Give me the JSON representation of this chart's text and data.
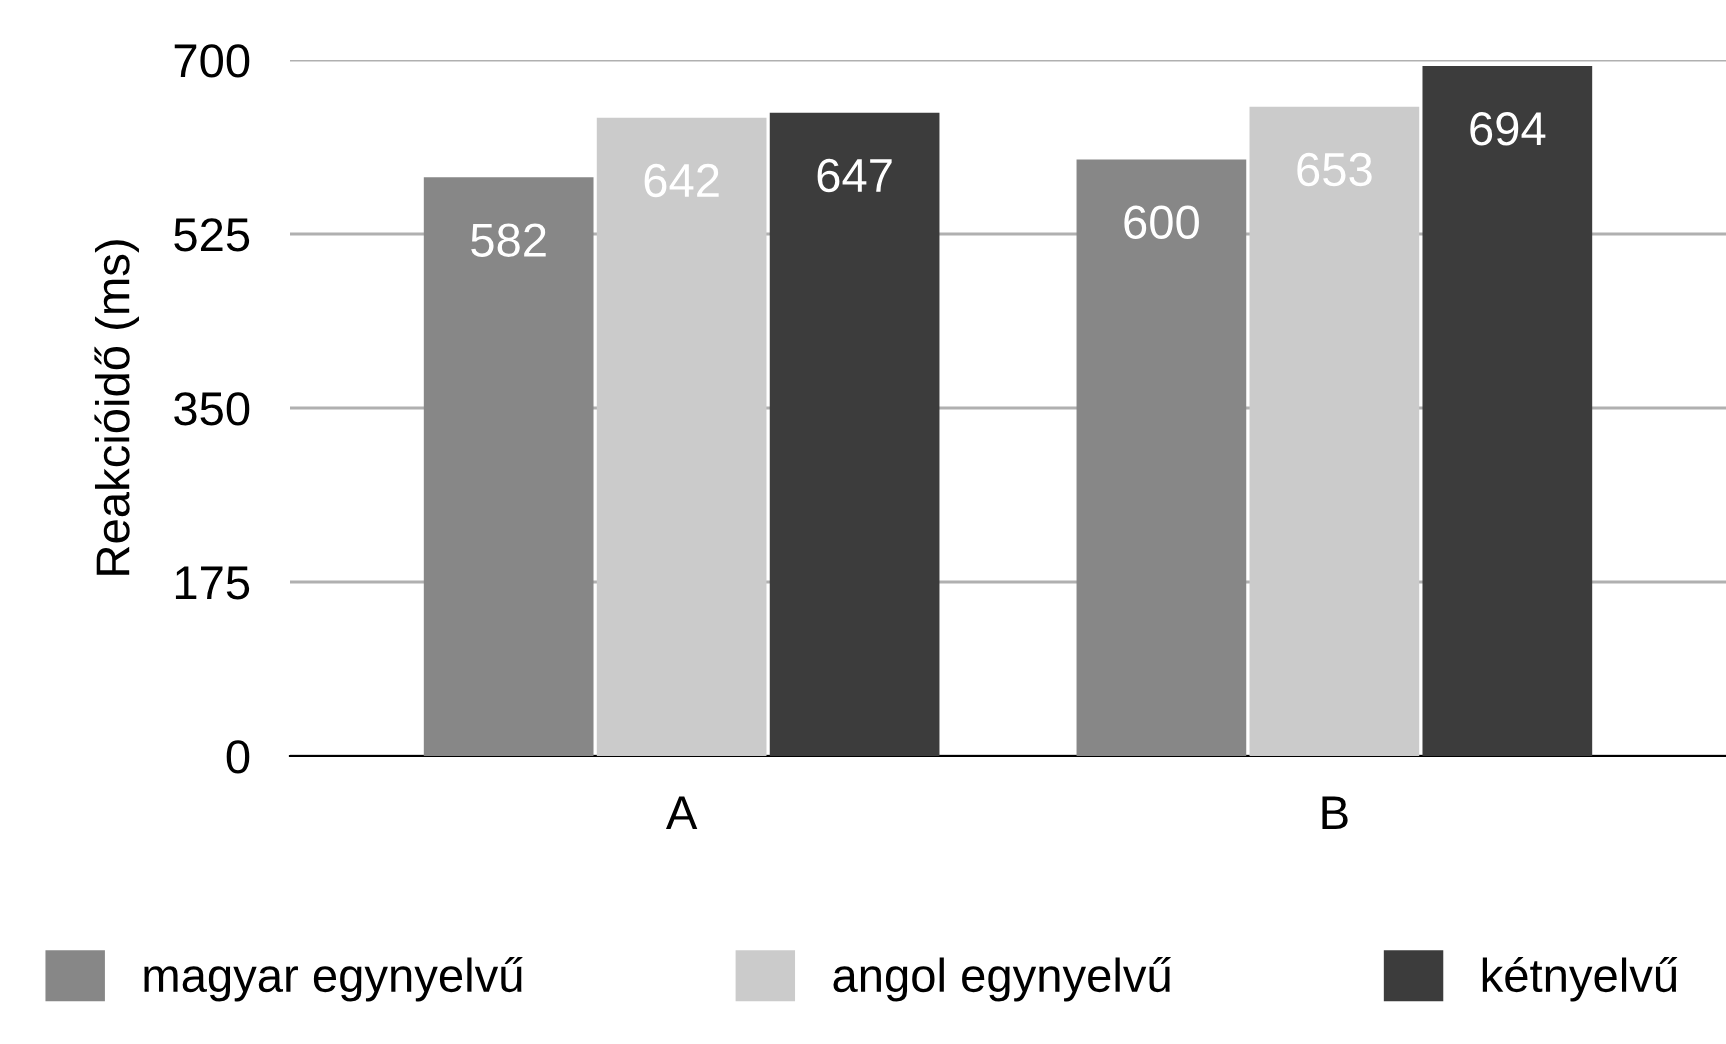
{
  "chart_data": {
    "type": "bar",
    "ylabel": "Reakcióidő (ms)",
    "categories": [
      "A",
      "B"
    ],
    "series": [
      {
        "name": "magyar egynyelvű",
        "color": "#878787",
        "values": [
          582,
          600
        ]
      },
      {
        "name": "angol egynyelvű",
        "color": "#cbcbcb",
        "values": [
          642,
          653
        ]
      },
      {
        "name": "kétnyelvű",
        "color": "#3c3c3c",
        "values": [
          647,
          694
        ]
      }
    ],
    "ylim": [
      0,
      700
    ],
    "yticks": [
      0,
      175,
      350,
      525,
      700
    ],
    "grid": "y",
    "legend": "bottom",
    "data_labels": true
  }
}
